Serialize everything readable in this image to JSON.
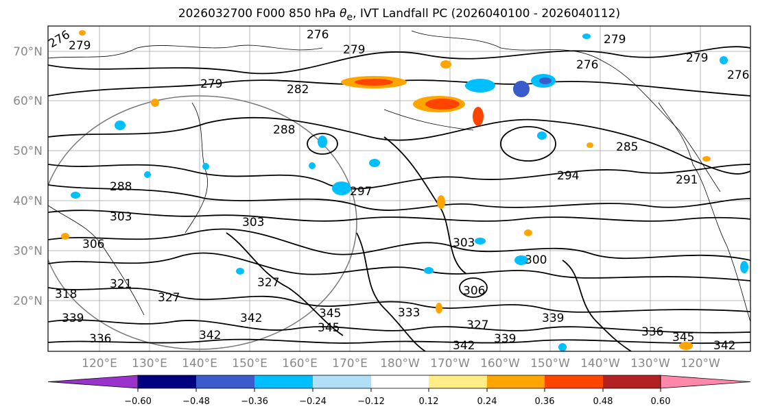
{
  "title": {
    "prefix": "2026032700 F000 850 hPa ",
    "theta": "θ",
    "theta_sub": "e",
    "suffix": ", IVT Landfall PC (2026040100 - 2026040112)"
  },
  "lat_labels": [
    "70°N",
    "60°N",
    "50°N",
    "40°N",
    "30°N",
    "20°N"
  ],
  "lon_labels": [
    "120°E",
    "130°E",
    "140°E",
    "150°E",
    "160°E",
    "170°E",
    "180°W",
    "170°W",
    "160°W",
    "150°W",
    "140°W",
    "130°W",
    "120°W"
  ],
  "colorbar": {
    "colors": [
      "#9933cc",
      "#000080",
      "#3a5bcc",
      "#00bfff",
      "#b0e0f8",
      "#ffffff",
      "#ffee88",
      "#ffa500",
      "#ff4400",
      "#b22222",
      "#ff88aa"
    ],
    "ticks": [
      "−0.60",
      "−0.48",
      "−0.36",
      "−0.24",
      "−0.12",
      "0.12",
      "0.24",
      "0.36",
      "0.48",
      "0.60"
    ]
  },
  "contour_labels": [
    "276",
    "279",
    "276",
    "279",
    "279",
    "276",
    "279",
    "276",
    "279",
    "282",
    "288",
    "288",
    "285",
    "294",
    "297",
    "291",
    "303",
    "303",
    "306",
    "300",
    "303",
    "306",
    "327",
    "327",
    "342",
    "345",
    "345",
    "342",
    "339",
    "336",
    "342",
    "333",
    "339",
    "342",
    "345",
    "336",
    "339",
    "327",
    "321",
    "318"
  ]
}
